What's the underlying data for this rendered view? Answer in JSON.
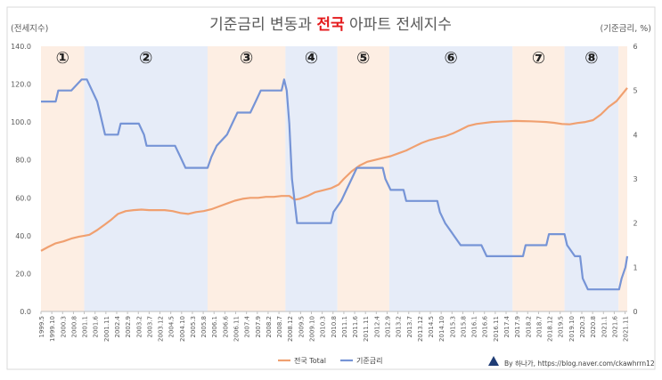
{
  "chart_data": {
    "type": "line",
    "title_parts": [
      {
        "text": "기준금리 변동과 ",
        "bold": false,
        "color": "#595959"
      },
      {
        "text": "전국",
        "bold": true,
        "color": "#e41a1c"
      },
      {
        "text": " 아파트 전세지수",
        "bold": false,
        "color": "#595959"
      }
    ],
    "left_axis_label": "(전세지수)",
    "right_axis_label": "(기준금리, %)",
    "ylim_left": [
      0,
      140
    ],
    "ylim_right": [
      0,
      6
    ],
    "left_ticks": [
      "0.0",
      "20.0",
      "40.0",
      "60.0",
      "80.0",
      "100.0",
      "120.0",
      "140.0"
    ],
    "right_ticks": [
      "0",
      "1",
      "2",
      "3",
      "4",
      "5",
      "6"
    ],
    "xlim": [
      1999.333,
      2021.917
    ],
    "x_tick_labels": [
      "1999.5",
      "1999.10",
      "2000.3",
      "2000.8",
      "2001.1",
      "2001.6",
      "2001.11",
      "2002.4",
      "2002.9",
      "2003.2",
      "2003.7",
      "2003.12",
      "2004.5",
      "2004.10",
      "2005.3",
      "2005.8",
      "2006.1",
      "2006.6",
      "2006.11",
      "2007.4",
      "2007.9",
      "2008.2",
      "2008.7",
      "2008.12",
      "2009.5",
      "2009.10",
      "2010.3",
      "2010.8",
      "2011.1",
      "2011.6",
      "2011.11",
      "2012.4",
      "2012.9",
      "2013.2",
      "2013.7",
      "2013.12",
      "2014.5",
      "2014.10",
      "2015.3",
      "2015.8",
      "2016.1",
      "2016.6",
      "2016.11",
      "2017.4",
      "2017.9",
      "2018.2",
      "2018.7",
      "2018.12",
      "2019.5",
      "2019.10",
      "2020.3",
      "2020.8",
      "2021.1",
      "2021.6",
      "2021.11"
    ],
    "periods": [
      {
        "label": "①",
        "start": 1999.333,
        "end": 2001.0,
        "color": "#fdeee3"
      },
      {
        "label": "②",
        "start": 2001.0,
        "end": 2005.75,
        "color": "#e6ecf8"
      },
      {
        "label": "③",
        "start": 2005.75,
        "end": 2008.75,
        "color": "#fdeee3"
      },
      {
        "label": "④",
        "start": 2008.75,
        "end": 2010.75,
        "color": "#e6ecf8"
      },
      {
        "label": "⑤",
        "start": 2010.75,
        "end": 2012.75,
        "color": "#fdeee3"
      },
      {
        "label": "⑥",
        "start": 2012.75,
        "end": 2017.5,
        "color": "#e6ecf8"
      },
      {
        "label": "⑦",
        "start": 2017.5,
        "end": 2019.5,
        "color": "#fdeee3"
      },
      {
        "label": "⑧",
        "start": 2019.5,
        "end": 2021.58,
        "color": "#e6ecf8"
      },
      {
        "label": "",
        "start": 2021.58,
        "end": 2021.917,
        "color": "#fdeee3"
      }
    ],
    "series": [
      {
        "name": "전국 Total",
        "axis": "left",
        "color": "#f0a070",
        "points": [
          [
            1999.333,
            32
          ],
          [
            1999.6,
            34
          ],
          [
            1999.9,
            36
          ],
          [
            2000.2,
            37
          ],
          [
            2000.5,
            38.5
          ],
          [
            2000.8,
            39.5
          ],
          [
            2001.0,
            40
          ],
          [
            2001.2,
            40.5
          ],
          [
            2001.5,
            43
          ],
          [
            2001.8,
            46
          ],
          [
            2002.0,
            48
          ],
          [
            2002.3,
            51.5
          ],
          [
            2002.6,
            53
          ],
          [
            2002.9,
            53.5
          ],
          [
            2003.2,
            53.8
          ],
          [
            2003.5,
            53.5
          ],
          [
            2003.8,
            53.5
          ],
          [
            2004.1,
            53.5
          ],
          [
            2004.4,
            53
          ],
          [
            2004.7,
            52
          ],
          [
            2005.0,
            51.5
          ],
          [
            2005.3,
            52.5
          ],
          [
            2005.6,
            53
          ],
          [
            2005.9,
            54
          ],
          [
            2006.2,
            55.5
          ],
          [
            2006.5,
            57
          ],
          [
            2006.8,
            58.5
          ],
          [
            2007.1,
            59.5
          ],
          [
            2007.4,
            60
          ],
          [
            2007.7,
            60
          ],
          [
            2008.0,
            60.5
          ],
          [
            2008.3,
            60.5
          ],
          [
            2008.6,
            61
          ],
          [
            2008.9,
            61
          ],
          [
            2009.1,
            59
          ],
          [
            2009.3,
            59.5
          ],
          [
            2009.6,
            61
          ],
          [
            2009.9,
            63
          ],
          [
            2010.2,
            64
          ],
          [
            2010.5,
            65
          ],
          [
            2010.8,
            67
          ],
          [
            2011.0,
            70
          ],
          [
            2011.3,
            74
          ],
          [
            2011.6,
            77
          ],
          [
            2011.9,
            79
          ],
          [
            2012.2,
            80
          ],
          [
            2012.5,
            81
          ],
          [
            2012.8,
            82
          ],
          [
            2013.1,
            83.5
          ],
          [
            2013.4,
            85
          ],
          [
            2013.7,
            87
          ],
          [
            2014.0,
            89
          ],
          [
            2014.3,
            90.5
          ],
          [
            2014.6,
            91.5
          ],
          [
            2014.9,
            92.5
          ],
          [
            2015.2,
            94
          ],
          [
            2015.5,
            96
          ],
          [
            2015.8,
            98
          ],
          [
            2016.1,
            99
          ],
          [
            2016.4,
            99.5
          ],
          [
            2016.7,
            100
          ],
          [
            2017.0,
            100.2
          ],
          [
            2017.3,
            100.4
          ],
          [
            2017.6,
            100.6
          ],
          [
            2017.9,
            100.5
          ],
          [
            2018.2,
            100.4
          ],
          [
            2018.5,
            100.2
          ],
          [
            2018.8,
            100
          ],
          [
            2019.1,
            99.6
          ],
          [
            2019.4,
            99
          ],
          [
            2019.7,
            98.8
          ],
          [
            2020.0,
            99.5
          ],
          [
            2020.3,
            100
          ],
          [
            2020.6,
            101
          ],
          [
            2020.9,
            104
          ],
          [
            2021.2,
            108
          ],
          [
            2021.5,
            111
          ],
          [
            2021.8,
            116
          ],
          [
            2021.917,
            118
          ]
        ]
      },
      {
        "name": "기준금리",
        "axis": "right",
        "color": "#7694d6",
        "points": [
          [
            1999.333,
            4.75
          ],
          [
            1999.9,
            4.75
          ],
          [
            2000.0,
            5.0
          ],
          [
            2000.5,
            5.0
          ],
          [
            2000.9,
            5.25
          ],
          [
            2001.1,
            5.25
          ],
          [
            2001.3,
            5.0
          ],
          [
            2001.5,
            4.75
          ],
          [
            2001.6,
            4.5
          ],
          [
            2001.8,
            4.0
          ],
          [
            2002.3,
            4.0
          ],
          [
            2002.4,
            4.25
          ],
          [
            2003.1,
            4.25
          ],
          [
            2003.3,
            4.0
          ],
          [
            2003.4,
            3.75
          ],
          [
            2004.5,
            3.75
          ],
          [
            2004.7,
            3.5
          ],
          [
            2004.9,
            3.25
          ],
          [
            2005.75,
            3.25
          ],
          [
            2005.9,
            3.5
          ],
          [
            2006.1,
            3.75
          ],
          [
            2006.5,
            4.0
          ],
          [
            2006.7,
            4.25
          ],
          [
            2006.9,
            4.5
          ],
          [
            2007.4,
            4.5
          ],
          [
            2007.6,
            4.75
          ],
          [
            2007.8,
            5.0
          ],
          [
            2008.6,
            5.0
          ],
          [
            2008.7,
            5.25
          ],
          [
            2008.8,
            5.0
          ],
          [
            2008.9,
            4.25
          ],
          [
            2009.0,
            3.0
          ],
          [
            2009.1,
            2.5
          ],
          [
            2009.2,
            2.0
          ],
          [
            2010.5,
            2.0
          ],
          [
            2010.6,
            2.25
          ],
          [
            2010.9,
            2.5
          ],
          [
            2011.1,
            2.75
          ],
          [
            2011.3,
            3.0
          ],
          [
            2011.5,
            3.25
          ],
          [
            2012.5,
            3.25
          ],
          [
            2012.6,
            3.0
          ],
          [
            2012.8,
            2.75
          ],
          [
            2013.3,
            2.75
          ],
          [
            2013.4,
            2.5
          ],
          [
            2014.6,
            2.5
          ],
          [
            2014.7,
            2.25
          ],
          [
            2014.9,
            2.0
          ],
          [
            2015.2,
            1.75
          ],
          [
            2015.5,
            1.5
          ],
          [
            2016.3,
            1.5
          ],
          [
            2016.5,
            1.25
          ],
          [
            2017.9,
            1.25
          ],
          [
            2018.0,
            1.5
          ],
          [
            2018.8,
            1.5
          ],
          [
            2018.9,
            1.75
          ],
          [
            2019.5,
            1.75
          ],
          [
            2019.6,
            1.5
          ],
          [
            2019.9,
            1.25
          ],
          [
            2020.1,
            1.25
          ],
          [
            2020.2,
            0.75
          ],
          [
            2020.4,
            0.5
          ],
          [
            2021.6,
            0.5
          ],
          [
            2021.7,
            0.75
          ],
          [
            2021.85,
            1.0
          ],
          [
            2021.917,
            1.25
          ]
        ]
      }
    ],
    "legend_position": "bottom-center",
    "grid": false
  },
  "credit": "By 하나가, https://blog.naver.com/ckawhrrn12",
  "colors": {
    "frame_border": "#d9d9d9",
    "axis": "#bfbfbf",
    "tick_text": "#595959"
  }
}
